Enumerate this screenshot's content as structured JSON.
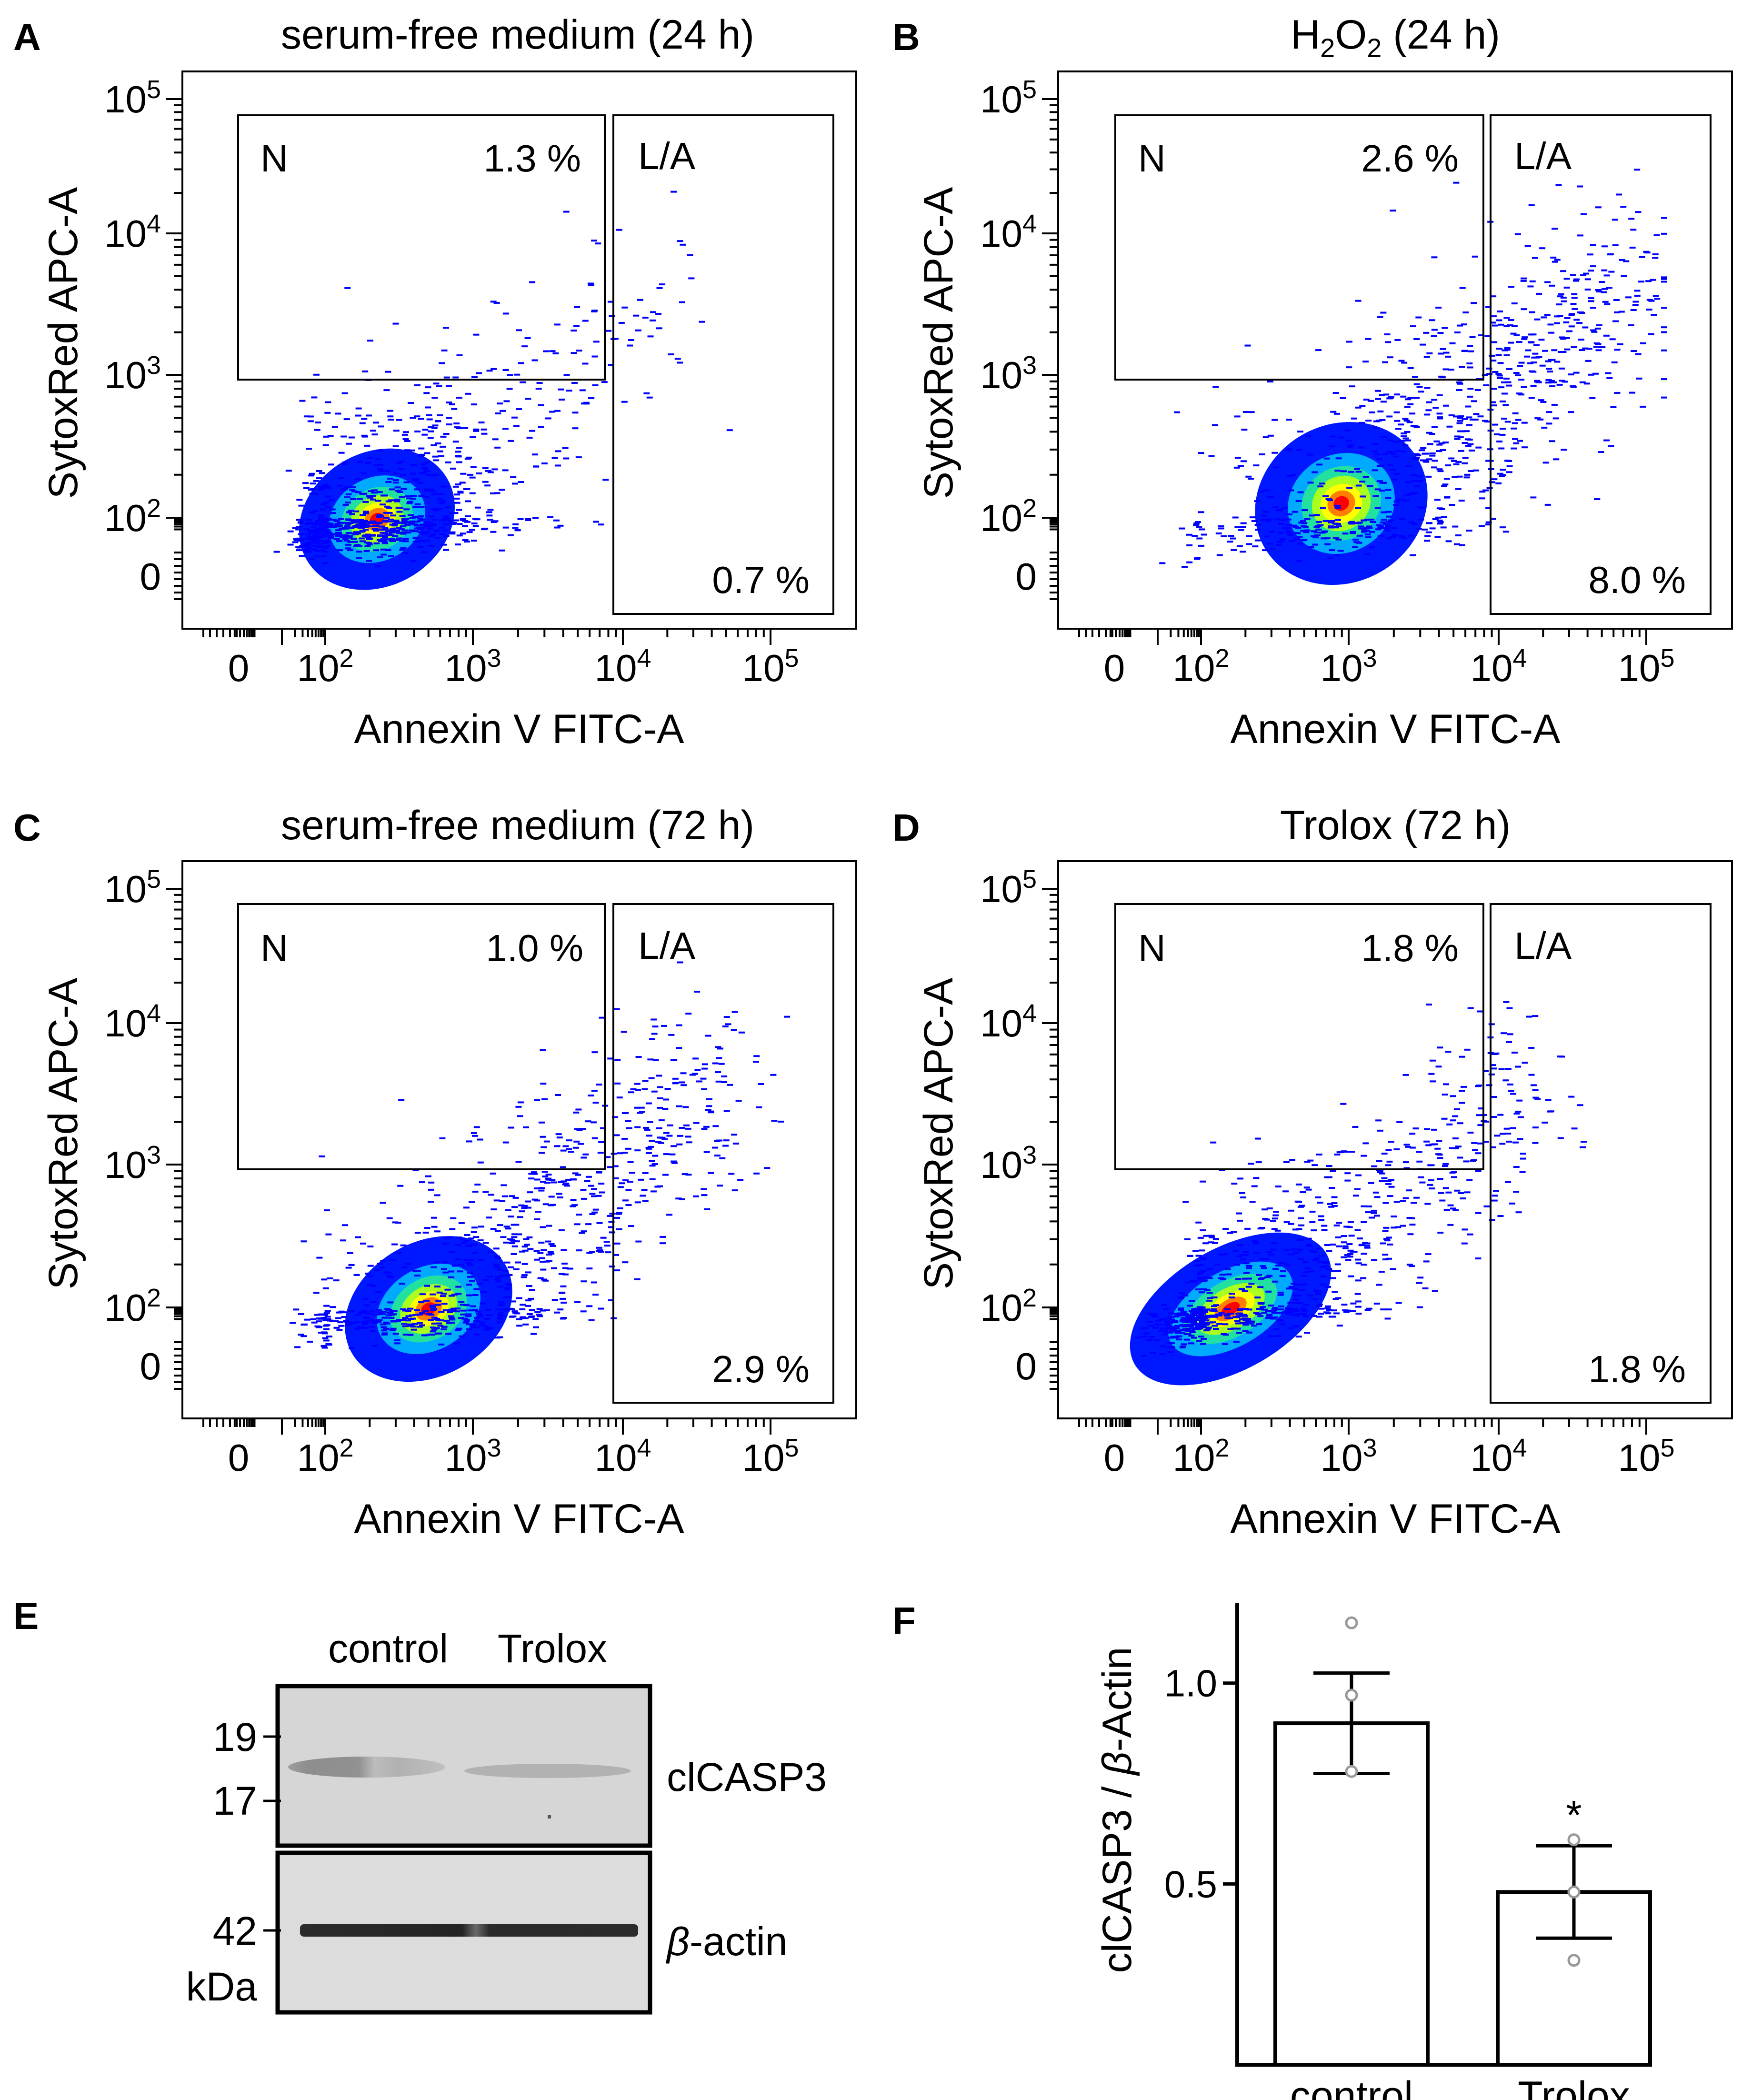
{
  "figure": {
    "flow_panels": [
      {
        "id": "A",
        "letter": "A",
        "title": "serum-free medium (24 h)",
        "xlabel": "Annexin V FITC-A",
        "ylabel": "SytoxRed APC-A",
        "gates": {
          "N": "N",
          "N_pct": "1.3 %",
          "LA": "L/A",
          "LA_pct": "0.7 %"
        },
        "population": {
          "center_x_log": 2.35,
          "center_y_log": 1.95,
          "spread_x": 0.55,
          "spread_y": 0.55,
          "tail": 0.15
        }
      },
      {
        "id": "B",
        "letter": "B",
        "title_main": "H",
        "title_sub": "2",
        "title_mid": "O",
        "title_sub2": "2",
        "title_rest": " (24 h)",
        "xlabel": "Annexin V FITC-A",
        "ylabel": "SytoxRed APC-A",
        "gates": {
          "N": "N",
          "N_pct": "2.6 %",
          "LA": "L/A",
          "LA_pct": "8.0 %"
        },
        "population": {
          "center_x_log": 2.95,
          "center_y_log": 2.1,
          "spread_x": 0.6,
          "spread_y": 0.65,
          "tail": 0.55
        }
      },
      {
        "id": "C",
        "letter": "C",
        "title": "serum-free medium (72 h)",
        "xlabel": "Annexin V FITC-A",
        "ylabel": "SytoxRed APC-A",
        "gates": {
          "N": "N",
          "N_pct": "1.0 %",
          "LA": "L/A",
          "LA_pct": "2.9 %"
        },
        "population": {
          "center_x_log": 2.7,
          "center_y_log": 1.95,
          "spread_x": 0.6,
          "spread_y": 0.55,
          "tail": 0.45
        }
      },
      {
        "id": "D",
        "letter": "D",
        "title": "Trolox (72 h)",
        "xlabel": "Annexin V FITC-A",
        "ylabel": "SytoxRed APC-A",
        "gates": {
          "N": "N",
          "N_pct": "1.8 %",
          "LA": "L/A",
          "LA_pct": "1.8 %"
        },
        "population": {
          "center_x_log": 2.2,
          "center_y_log": 1.95,
          "spread_x": 0.75,
          "spread_y": 0.5,
          "tail": 0.35
        }
      }
    ],
    "flow_ticks": {
      "x": [
        {
          "base": "0",
          "exp": ""
        },
        {
          "base": "10",
          "exp": "2"
        },
        {
          "base": "10",
          "exp": "3"
        },
        {
          "base": "10",
          "exp": "4"
        },
        {
          "base": "10",
          "exp": "5"
        }
      ],
      "y": [
        {
          "base": "0",
          "exp": ""
        },
        {
          "base": "10",
          "exp": "2"
        },
        {
          "base": "10",
          "exp": "3"
        },
        {
          "base": "10",
          "exp": "4"
        },
        {
          "base": "10",
          "exp": "5"
        }
      ]
    },
    "blot": {
      "letter": "E",
      "lanes": [
        "control",
        "Trolox"
      ],
      "markers": [
        "19",
        "17",
        "42"
      ],
      "unit": "kDa",
      "bands": [
        "clCASP3",
        "-actin"
      ],
      "beta": "β"
    },
    "bar_panel": {
      "letter": "F",
      "ylabel_pre": "clCASP3 / ",
      "ylabel_beta": "β",
      "ylabel_post": "-Actin",
      "significance": "*"
    }
  },
  "chart_data": [
    {
      "type": "scatter",
      "title": "serum-free medium (24 h)",
      "xlabel": "Annexin V FITC-A",
      "ylabel": "SytoxRed APC-A",
      "xscale": "biexponential",
      "yscale": "biexponential",
      "x_ticks": [
        "0",
        "10^2",
        "10^3",
        "10^4",
        "10^5"
      ],
      "y_ticks": [
        "0",
        "10^2",
        "10^3",
        "10^4",
        "10^5"
      ],
      "gates": [
        {
          "name": "N",
          "percent": 1.3
        },
        {
          "name": "L/A",
          "percent": 0.7
        }
      ]
    },
    {
      "type": "scatter",
      "title": "H2O2 (24 h)",
      "xlabel": "Annexin V FITC-A",
      "ylabel": "SytoxRed APC-A",
      "xscale": "biexponential",
      "yscale": "biexponential",
      "x_ticks": [
        "0",
        "10^2",
        "10^3",
        "10^4",
        "10^5"
      ],
      "y_ticks": [
        "0",
        "10^2",
        "10^3",
        "10^4",
        "10^5"
      ],
      "gates": [
        {
          "name": "N",
          "percent": 2.6
        },
        {
          "name": "L/A",
          "percent": 8.0
        }
      ]
    },
    {
      "type": "scatter",
      "title": "serum-free medium (72 h)",
      "xlabel": "Annexin V FITC-A",
      "ylabel": "SytoxRed APC-A",
      "xscale": "biexponential",
      "yscale": "biexponential",
      "x_ticks": [
        "0",
        "10^2",
        "10^3",
        "10^4",
        "10^5"
      ],
      "y_ticks": [
        "0",
        "10^2",
        "10^3",
        "10^4",
        "10^5"
      ],
      "gates": [
        {
          "name": "N",
          "percent": 1.0
        },
        {
          "name": "L/A",
          "percent": 2.9
        }
      ]
    },
    {
      "type": "scatter",
      "title": "Trolox (72 h)",
      "xlabel": "Annexin V FITC-A",
      "ylabel": "SytoxRed APC-A",
      "xscale": "biexponential",
      "yscale": "biexponential",
      "x_ticks": [
        "0",
        "10^2",
        "10^3",
        "10^4",
        "10^5"
      ],
      "y_ticks": [
        "0",
        "10^2",
        "10^3",
        "10^4",
        "10^5"
      ],
      "gates": [
        {
          "name": "N",
          "percent": 1.8
        },
        {
          "name": "L/A",
          "percent": 1.8
        }
      ]
    },
    {
      "type": "bar",
      "title": "",
      "categories": [
        "control",
        "Trolox"
      ],
      "values": [
        0.9,
        0.48
      ],
      "errors": [
        0.125,
        0.115
      ],
      "points": [
        [
          1.15,
          0.97,
          0.78
        ],
        [
          0.61,
          0.48,
          0.31
        ]
      ],
      "ylabel": "clCASP3 / β-Actin",
      "xlabel": "",
      "ylim": [
        0.05,
        1.2
      ],
      "yticks": [
        0.5,
        1.0
      ],
      "ytick_labels": [
        "0.5",
        "1.0"
      ],
      "significance": [
        null,
        "*"
      ]
    }
  ]
}
